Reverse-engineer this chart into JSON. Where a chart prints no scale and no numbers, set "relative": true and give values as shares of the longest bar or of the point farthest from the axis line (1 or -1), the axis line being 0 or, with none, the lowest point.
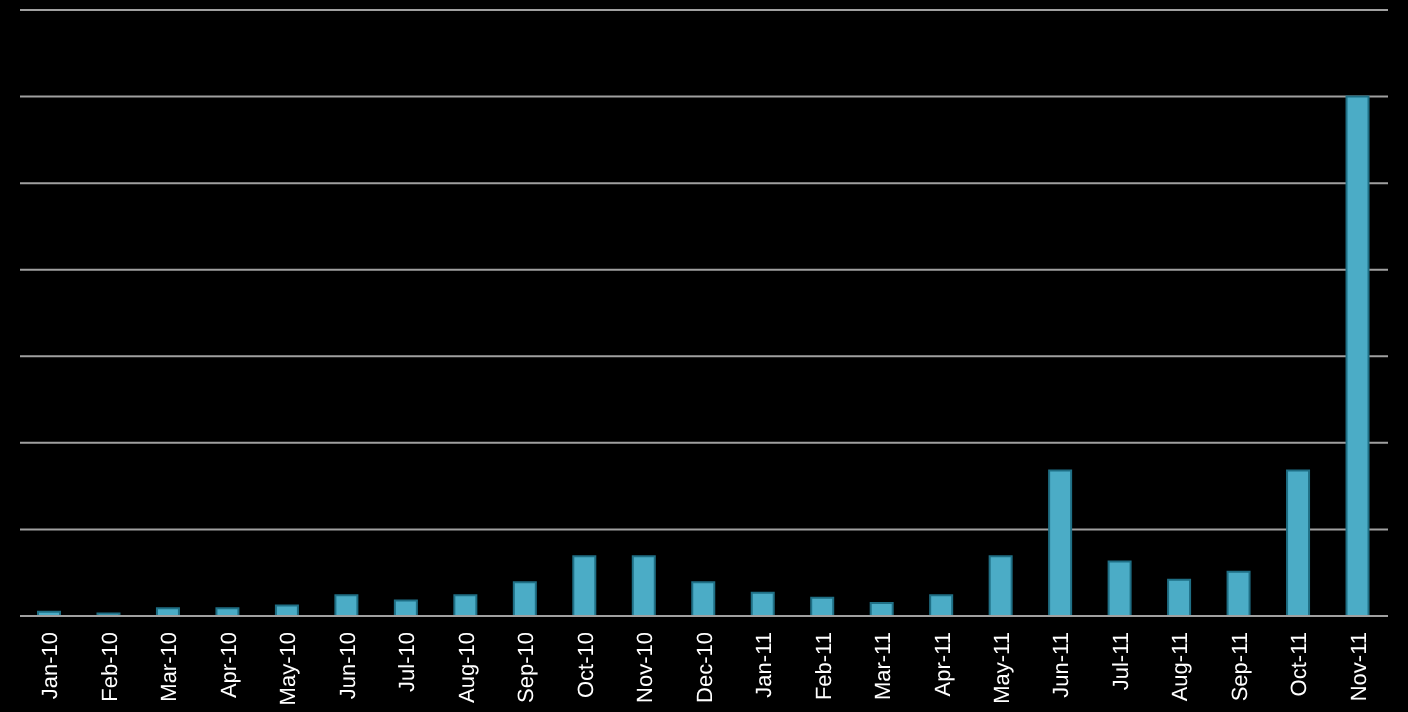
{
  "chart_data": {
    "type": "bar",
    "relative": true,
    "grid": "y",
    "color": "#4bacc6",
    "categories": [
      "Jan-10",
      "Feb-10",
      "Mar-10",
      "Apr-10",
      "May-10",
      "Jun-10",
      "Jul-10",
      "Aug-10",
      "Sep-10",
      "Oct-10",
      "Nov-10",
      "Dec-10",
      "Jan-11",
      "Feb-11",
      "Mar-11",
      "Apr-11",
      "May-11",
      "Jun-11",
      "Jul-11",
      "Aug-11",
      "Sep-11",
      "Oct-11",
      "Nov-11"
    ],
    "values": [
      0.008,
      0.005,
      0.015,
      0.015,
      0.02,
      0.04,
      0.03,
      0.04,
      0.065,
      0.115,
      0.115,
      0.065,
      0.045,
      0.035,
      0.025,
      0.04,
      0.115,
      0.28,
      0.105,
      0.07,
      0.085,
      0.28,
      1
    ]
  }
}
